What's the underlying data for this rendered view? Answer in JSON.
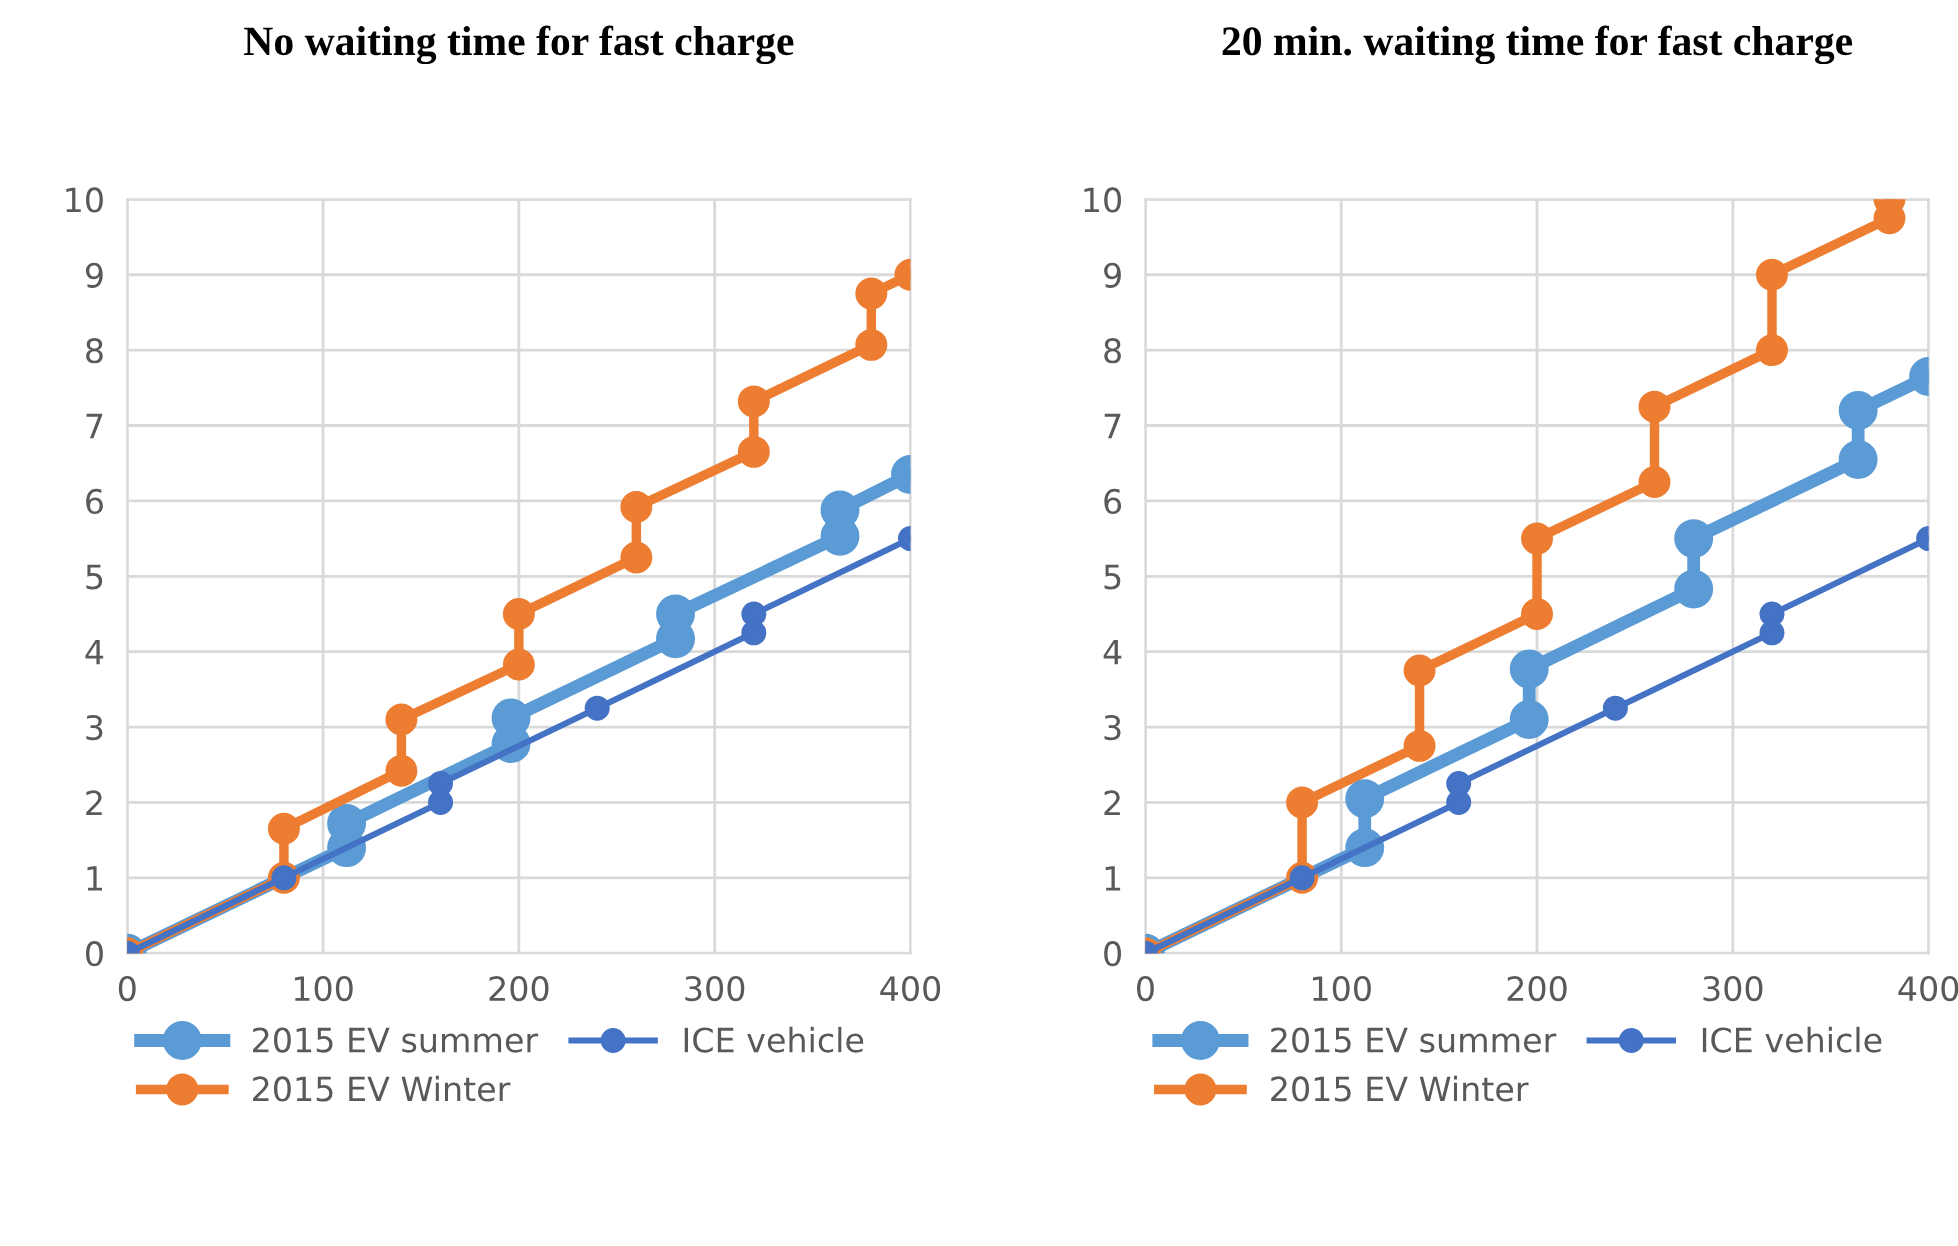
{
  "chart_data": [
    {
      "type": "line",
      "title": "No waiting time for fast charge",
      "xlim": [
        0,
        400
      ],
      "xticks": [
        0,
        100,
        200,
        300,
        400
      ],
      "ylim": [
        0,
        10
      ],
      "yticks": [
        0,
        1,
        2,
        3,
        4,
        5,
        6,
        7,
        8,
        9,
        10
      ],
      "grid": true,
      "legend": "bottom",
      "marker": "circle",
      "line_style": "solid",
      "series": [
        {
          "name": "2015 EV summer",
          "color": "#5b9bd5",
          "x": [
            0,
            112,
            112,
            196,
            196,
            280,
            280,
            364,
            364,
            400
          ],
          "values": [
            0,
            1.4,
            1.72,
            2.78,
            3.12,
            4.17,
            4.5,
            5.53,
            5.88,
            6.35
          ]
        },
        {
          "name": "2015 EV Winter",
          "color": "#ed7d31",
          "x": [
            0,
            80,
            80,
            140,
            140,
            200,
            200,
            260,
            260,
            320,
            320,
            380,
            380,
            400
          ],
          "values": [
            0,
            1,
            1.65,
            2.42,
            3.1,
            3.83,
            4.5,
            5.25,
            5.92,
            6.65,
            7.32,
            8.07,
            8.75,
            9.0
          ]
        },
        {
          "name": "ICE vehicle",
          "color": "#4472c4",
          "x": [
            0,
            80,
            160,
            160,
            240,
            320,
            320,
            400
          ],
          "values": [
            0,
            1,
            2,
            2.25,
            3.25,
            4.25,
            4.5,
            5.5
          ]
        }
      ]
    },
    {
      "type": "line",
      "title": "20 min. waiting time for fast charge",
      "xlim": [
        0,
        400
      ],
      "xticks": [
        0,
        100,
        200,
        300,
        400
      ],
      "ylim": [
        0,
        10
      ],
      "yticks": [
        0,
        1,
        2,
        3,
        4,
        5,
        6,
        7,
        8,
        9,
        10
      ],
      "grid": true,
      "legend": "bottom",
      "marker": "circle",
      "line_style": "solid",
      "series": [
        {
          "name": "2015 EV summer",
          "color": "#5b9bd5",
          "x": [
            0,
            112,
            112,
            196,
            196,
            280,
            280,
            364,
            364,
            400
          ],
          "values": [
            0,
            1.4,
            2.05,
            3.1,
            3.77,
            4.83,
            5.5,
            6.55,
            7.2,
            7.65
          ]
        },
        {
          "name": "2015 EV Winter",
          "color": "#ed7d31",
          "x": [
            0,
            80,
            80,
            140,
            140,
            200,
            200,
            260,
            260,
            320,
            320,
            380,
            380
          ],
          "values": [
            0,
            1,
            2,
            2.75,
            3.75,
            4.5,
            5.5,
            6.25,
            7.25,
            8,
            9,
            9.75,
            10
          ]
        },
        {
          "name": "ICE vehicle",
          "color": "#4472c4",
          "x": [
            0,
            80,
            160,
            160,
            240,
            320,
            320,
            400
          ],
          "values": [
            0,
            1,
            2,
            2.25,
            3.25,
            4.25,
            4.5,
            5.5
          ]
        }
      ]
    }
  ]
}
